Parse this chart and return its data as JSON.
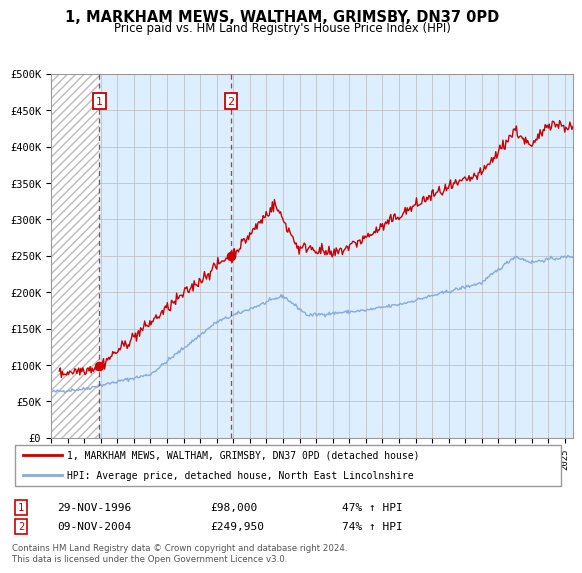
{
  "title": "1, MARKHAM MEWS, WALTHAM, GRIMSBY, DN37 0PD",
  "subtitle": "Price paid vs. HM Land Registry's House Price Index (HPI)",
  "ylim": [
    0,
    500000
  ],
  "yticks": [
    0,
    50000,
    100000,
    150000,
    200000,
    250000,
    300000,
    350000,
    400000,
    450000,
    500000
  ],
  "ytick_labels": [
    "£0",
    "£50K",
    "£100K",
    "£150K",
    "£200K",
    "£250K",
    "£300K",
    "£350K",
    "£400K",
    "£450K",
    "£500K"
  ],
  "xlim_start": 1994.0,
  "xlim_end": 2025.5,
  "sale1_date": 1996.92,
  "sale1_price": 98000,
  "sale1_label": "29-NOV-1996",
  "sale1_amount": "£98,000",
  "sale1_hpi": "47% ↑ HPI",
  "sale2_date": 2004.87,
  "sale2_price": 249950,
  "sale2_label": "09-NOV-2004",
  "sale2_amount": "£249,950",
  "sale2_hpi": "74% ↑ HPI",
  "red_line_color": "#cc0000",
  "blue_line_color": "#88aadd",
  "legend_line1": "1, MARKHAM MEWS, WALTHAM, GRIMSBY, DN37 0PD (detached house)",
  "legend_line2": "HPI: Average price, detached house, North East Lincolnshire",
  "footer": "Contains HM Land Registry data © Crown copyright and database right 2024.\nThis data is licensed under the Open Government Licence v3.0.",
  "background_color": "#ddeeff",
  "hatch_color": "#bbbbbb",
  "grid_color": "#bbbbbb"
}
